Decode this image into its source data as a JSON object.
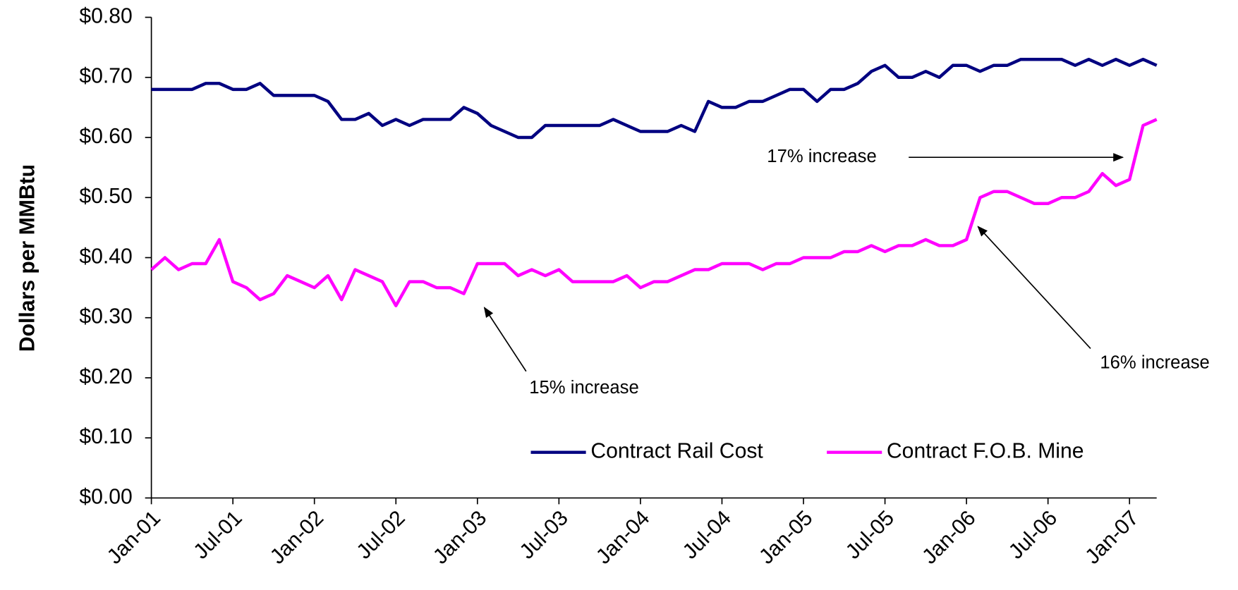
{
  "chart_data": {
    "type": "line",
    "y_label": "Dollars per MMBtu",
    "categories": [
      "Jan-01",
      null,
      null,
      null,
      null,
      null,
      "Jul-01",
      null,
      null,
      null,
      null,
      null,
      "Jan-02",
      null,
      null,
      null,
      null,
      null,
      "Jul-02",
      null,
      null,
      null,
      null,
      null,
      "Jan-03",
      null,
      null,
      null,
      null,
      null,
      "Jul-03",
      null,
      null,
      null,
      null,
      null,
      "Jan-04",
      null,
      null,
      null,
      null,
      null,
      "Jul-04",
      null,
      null,
      null,
      null,
      null,
      "Jan-05",
      null,
      null,
      null,
      null,
      null,
      "Jul-05",
      null,
      null,
      null,
      null,
      null,
      "Jan-06",
      null,
      null,
      null,
      null,
      null,
      "Jul-06",
      null,
      null,
      null,
      null,
      null,
      "Jan-07",
      null,
      null
    ],
    "series": [
      {
        "name": "Contract Rail Cost",
        "color": "#000080",
        "values": [
          0.68,
          0.68,
          0.68,
          0.68,
          0.69,
          0.69,
          0.68,
          0.68,
          0.69,
          0.67,
          0.67,
          0.67,
          0.67,
          0.66,
          0.63,
          0.63,
          0.64,
          0.62,
          0.63,
          0.62,
          0.63,
          0.63,
          0.63,
          0.65,
          0.64,
          0.62,
          0.61,
          0.6,
          0.6,
          0.62,
          0.62,
          0.62,
          0.62,
          0.62,
          0.63,
          0.62,
          0.61,
          0.61,
          0.61,
          0.62,
          0.61,
          0.66,
          0.65,
          0.65,
          0.66,
          0.66,
          0.67,
          0.68,
          0.68,
          0.66,
          0.68,
          0.68,
          0.69,
          0.71,
          0.72,
          0.7,
          0.7,
          0.71,
          0.7,
          0.72,
          0.72,
          0.71,
          0.72,
          0.72,
          0.73,
          0.73,
          0.73,
          0.73,
          0.72,
          0.73,
          0.72,
          0.73,
          0.72,
          0.73,
          0.72
        ]
      },
      {
        "name": "Contract F.O.B. Mine",
        "color": "#ff00ff",
        "values": [
          0.38,
          0.4,
          0.38,
          0.39,
          0.39,
          0.43,
          0.36,
          0.35,
          0.33,
          0.34,
          0.37,
          0.36,
          0.35,
          0.37,
          0.33,
          0.38,
          0.37,
          0.36,
          0.32,
          0.36,
          0.36,
          0.35,
          0.35,
          0.34,
          0.39,
          0.39,
          0.39,
          0.37,
          0.38,
          0.37,
          0.38,
          0.36,
          0.36,
          0.36,
          0.36,
          0.37,
          0.35,
          0.36,
          0.36,
          0.37,
          0.38,
          0.38,
          0.39,
          0.39,
          0.39,
          0.38,
          0.39,
          0.39,
          0.4,
          0.4,
          0.4,
          0.41,
          0.41,
          0.42,
          0.41,
          0.42,
          0.42,
          0.43,
          0.42,
          0.42,
          0.43,
          0.5,
          0.51,
          0.51,
          0.5,
          0.49,
          0.49,
          0.5,
          0.5,
          0.51,
          0.54,
          0.52,
          0.53,
          0.62,
          0.63
        ]
      }
    ],
    "ylim": [
      0,
      0.8
    ],
    "yticks": [
      {
        "value": 0,
        "label": "$0.00"
      },
      {
        "value": 0.1,
        "label": "$0.10"
      },
      {
        "value": 0.2,
        "label": "$0.20"
      },
      {
        "value": 0.3,
        "label": "$0.30"
      },
      {
        "value": 0.4,
        "label": "$0.40"
      },
      {
        "value": 0.5,
        "label": "$0.50"
      },
      {
        "value": 0.6,
        "label": "$0.60"
      },
      {
        "value": 0.7,
        "label": "$0.70"
      },
      {
        "value": 0.8,
        "label": "$0.80"
      }
    ],
    "annotations": [
      "15% increase",
      "16% increase",
      "17% increase"
    ]
  }
}
